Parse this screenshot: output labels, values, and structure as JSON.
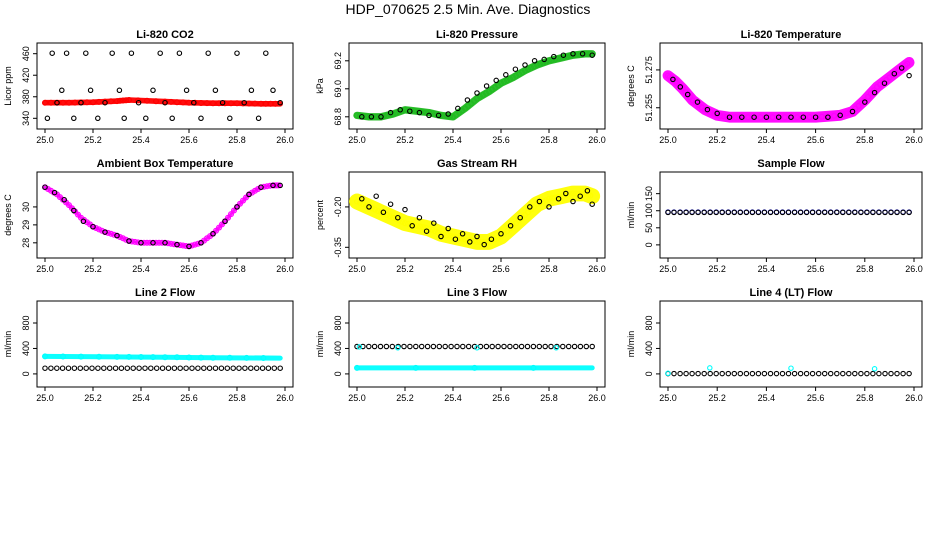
{
  "title": "HDP_070625  2.5 Min. Ave. Diagnostics",
  "chart_data": [
    {
      "type": "scatter",
      "title": "Li-820 CO2",
      "ylabel": "Licor ppm",
      "xlim": [
        25.0,
        26.0
      ],
      "ylim": [
        335,
        465
      ],
      "x_ticks": [
        "25.0",
        "25.2",
        "25.4",
        "25.6",
        "25.8",
        "26.0"
      ],
      "y_ticks": [
        "340",
        "380",
        "420",
        "460"
      ],
      "series": [
        {
          "name": "co2-dense",
          "color": "#ff0000",
          "style": "band",
          "x": [
            25.0,
            25.1,
            25.2,
            25.3,
            25.35,
            25.5,
            25.6,
            25.7,
            25.8,
            25.9,
            25.98
          ],
          "y": [
            369,
            369,
            370,
            372,
            374,
            371,
            369,
            368,
            368,
            367,
            367
          ],
          "spread": 1.5
        },
        {
          "name": "co2-samples",
          "color": "#000000",
          "style": "circles",
          "x": [
            25.01,
            25.03,
            25.05,
            25.07,
            25.09,
            25.12,
            25.15,
            25.17,
            25.19,
            25.22,
            25.25,
            25.28,
            25.31,
            25.33,
            25.36,
            25.39,
            25.42,
            25.45,
            25.48,
            25.5,
            25.53,
            25.56,
            25.59,
            25.62,
            25.65,
            25.68,
            25.71,
            25.74,
            25.77,
            25.8,
            25.83,
            25.86,
            25.89,
            25.92,
            25.95,
            25.98
          ],
          "y": [
            340,
            461,
            369,
            392,
            461,
            340,
            369,
            461,
            392,
            340,
            369,
            461,
            392,
            340,
            461,
            369,
            340,
            392,
            461,
            369,
            340,
            461,
            392,
            369,
            340,
            461,
            392,
            369,
            340,
            461,
            369,
            392,
            340,
            461,
            392,
            369
          ]
        }
      ]
    },
    {
      "type": "scatter",
      "title": "Li-820 Pressure",
      "ylabel": "kPa",
      "xlim": [
        25.0,
        26.0
      ],
      "ylim": [
        68.77,
        69.27
      ],
      "x_ticks": [
        "25.0",
        "25.2",
        "25.4",
        "25.6",
        "25.8",
        "26.0"
      ],
      "y_ticks": [
        "68.8",
        "69.0",
        "69.2"
      ],
      "series": [
        {
          "name": "pressure-dense",
          "color": "#22bb22",
          "style": "band",
          "x": [
            25.0,
            25.05,
            25.1,
            25.15,
            25.2,
            25.25,
            25.3,
            25.35,
            25.4,
            25.45,
            25.5,
            25.55,
            25.6,
            25.65,
            25.7,
            25.75,
            25.8,
            25.85,
            25.9,
            25.95,
            25.98
          ],
          "y": [
            68.81,
            68.8,
            68.8,
            68.82,
            68.85,
            68.84,
            68.83,
            68.81,
            68.8,
            68.86,
            68.93,
            68.98,
            69.04,
            69.08,
            69.13,
            69.17,
            69.2,
            69.22,
            69.24,
            69.25,
            69.25
          ],
          "spread": 0.012
        },
        {
          "name": "pressure-samples",
          "color": "#000000",
          "style": "circles",
          "x": [
            25.02,
            25.06,
            25.1,
            25.14,
            25.18,
            25.22,
            25.26,
            25.3,
            25.34,
            25.38,
            25.42,
            25.46,
            25.5,
            25.54,
            25.58,
            25.62,
            25.66,
            25.7,
            25.74,
            25.78,
            25.82,
            25.86,
            25.9,
            25.94,
            25.98
          ],
          "y": [
            68.8,
            68.8,
            68.8,
            68.83,
            68.85,
            68.84,
            68.83,
            68.81,
            68.81,
            68.82,
            68.86,
            68.92,
            68.97,
            69.02,
            69.06,
            69.1,
            69.14,
            69.17,
            69.2,
            69.21,
            69.23,
            69.24,
            69.25,
            69.25,
            69.24
          ]
        }
      ]
    },
    {
      "type": "scatter",
      "title": "Li-820 Temperature",
      "ylabel": "degrees C",
      "xlim": [
        25.0,
        26.0
      ],
      "ylim": [
        51.248,
        51.285
      ],
      "x_ticks": [
        "25.0",
        "25.2",
        "25.4",
        "25.6",
        "25.8",
        "26.0"
      ],
      "y_ticks": [
        "51.255",
        "51.275"
      ],
      "series": [
        {
          "name": "temp-dense",
          "color": "#ff00ff",
          "style": "band",
          "x": [
            25.0,
            25.03,
            25.06,
            25.1,
            25.15,
            25.2,
            25.25,
            25.3,
            25.4,
            25.5,
            25.6,
            25.7,
            25.75,
            25.8,
            25.85,
            25.9,
            25.95,
            25.98
          ],
          "y": [
            51.272,
            51.269,
            51.265,
            51.259,
            51.254,
            51.251,
            51.25,
            51.25,
            51.25,
            51.25,
            51.25,
            51.251,
            51.253,
            51.259,
            51.266,
            51.271,
            51.276,
            51.279
          ],
          "spread": 0.0018
        },
        {
          "name": "temp-samples",
          "color": "#000000",
          "style": "circles",
          "x": [
            25.02,
            25.05,
            25.08,
            25.12,
            25.16,
            25.2,
            25.25,
            25.3,
            25.35,
            25.4,
            25.45,
            25.5,
            25.55,
            25.6,
            25.65,
            25.7,
            25.75,
            25.8,
            25.84,
            25.88,
            25.92,
            25.95,
            25.98
          ],
          "y": [
            51.27,
            51.266,
            51.262,
            51.258,
            51.254,
            51.252,
            51.25,
            51.25,
            51.25,
            51.25,
            51.25,
            51.25,
            51.25,
            51.25,
            51.25,
            51.251,
            51.253,
            51.258,
            51.263,
            51.268,
            51.273,
            51.276,
            51.272
          ]
        }
      ]
    },
    {
      "type": "scatter",
      "title": "Ambient Box Temperature",
      "ylabel": "degrees C",
      "xlim": [
        25.0,
        26.0
      ],
      "ylim": [
        27.6,
        31.5
      ],
      "x_ticks": [
        "25.0",
        "25.2",
        "25.4",
        "25.6",
        "25.8",
        "26.0"
      ],
      "y_ticks": [
        "28",
        "29",
        "30"
      ],
      "series": [
        {
          "name": "ambient-dense",
          "color": "#ff00ff",
          "style": "line",
          "x": [
            25.0,
            25.05,
            25.1,
            25.15,
            25.2,
            25.25,
            25.3,
            25.35,
            25.4,
            25.45,
            25.5,
            25.55,
            25.6,
            25.65,
            25.7,
            25.75,
            25.8,
            25.85,
            25.9,
            25.95,
            25.98
          ],
          "y": [
            31.1,
            30.7,
            30.1,
            29.4,
            28.9,
            28.6,
            28.4,
            28.1,
            28.0,
            28.0,
            28.0,
            27.9,
            27.8,
            28.0,
            28.5,
            29.2,
            30.0,
            30.7,
            31.1,
            31.2,
            31.2
          ]
        },
        {
          "name": "ambient-samples",
          "color": "#000000",
          "style": "circles",
          "x": [
            25.0,
            25.04,
            25.08,
            25.12,
            25.16,
            25.2,
            25.25,
            25.3,
            25.35,
            25.4,
            25.45,
            25.5,
            25.55,
            25.6,
            25.65,
            25.7,
            25.75,
            25.8,
            25.85,
            25.9,
            25.95,
            25.98
          ],
          "y": [
            31.1,
            30.8,
            30.4,
            29.8,
            29.2,
            28.9,
            28.6,
            28.4,
            28.1,
            28.0,
            28.0,
            28.0,
            27.9,
            27.8,
            28.0,
            28.5,
            29.2,
            30.0,
            30.7,
            31.1,
            31.2,
            31.2
          ]
        }
      ]
    },
    {
      "type": "scatter",
      "title": "Gas Stream RH",
      "ylabel": "percent",
      "xlim": [
        25.0,
        26.0
      ],
      "ylim": [
        -0.36,
        -0.1
      ],
      "x_ticks": [
        "25.0",
        "25.2",
        "25.4",
        "25.6",
        "25.8",
        "26.0"
      ],
      "y_ticks": [
        "-0.35",
        "-0.20"
      ],
      "series": [
        {
          "name": "rh-dense",
          "color": "#ffff00",
          "style": "band",
          "x": [
            25.0,
            25.05,
            25.1,
            25.15,
            25.2,
            25.25,
            25.3,
            25.35,
            25.4,
            25.45,
            25.5,
            25.55,
            25.6,
            25.65,
            25.7,
            25.75,
            25.8,
            25.85,
            25.9,
            25.95,
            25.98
          ],
          "y": [
            -0.18,
            -0.2,
            -0.22,
            -0.24,
            -0.26,
            -0.27,
            -0.28,
            -0.3,
            -0.31,
            -0.32,
            -0.33,
            -0.33,
            -0.31,
            -0.27,
            -0.23,
            -0.19,
            -0.17,
            -0.16,
            -0.15,
            -0.15,
            -0.16
          ],
          "spread": 0.022
        },
        {
          "name": "rh-samples",
          "color": "#000000",
          "style": "circles",
          "x": [
            25.02,
            25.05,
            25.08,
            25.11,
            25.14,
            25.17,
            25.2,
            25.23,
            25.26,
            25.29,
            25.32,
            25.35,
            25.38,
            25.41,
            25.44,
            25.47,
            25.5,
            25.53,
            25.56,
            25.6,
            25.64,
            25.68,
            25.72,
            25.76,
            25.8,
            25.84,
            25.87,
            25.9,
            25.93,
            25.96,
            25.98
          ],
          "y": [
            -0.17,
            -0.2,
            -0.16,
            -0.22,
            -0.19,
            -0.24,
            -0.21,
            -0.27,
            -0.24,
            -0.29,
            -0.26,
            -0.31,
            -0.28,
            -0.32,
            -0.3,
            -0.33,
            -0.31,
            -0.34,
            -0.32,
            -0.3,
            -0.27,
            -0.24,
            -0.2,
            -0.18,
            -0.2,
            -0.17,
            -0.15,
            -0.18,
            -0.16,
            -0.14,
            -0.19
          ]
        }
      ]
    },
    {
      "type": "scatter",
      "title": "Sample Flow",
      "ylabel": "ml/min",
      "xlim": [
        25.0,
        26.0
      ],
      "ylim": [
        -15,
        190
      ],
      "x_ticks": [
        "25.0",
        "25.2",
        "25.4",
        "25.6",
        "25.8",
        "26.0"
      ],
      "y_ticks": [
        "0",
        "50",
        "100",
        "150"
      ],
      "series": [
        {
          "name": "sample-flow",
          "color": "#0000cc",
          "style": "circles-dense",
          "x_start": 25.0,
          "x_end": 25.98,
          "y": 96
        },
        {
          "name": "sample-flow-samples",
          "color": "#000000",
          "style": "circles-dense",
          "x_start": 25.0,
          "x_end": 25.98,
          "y": 95
        }
      ]
    },
    {
      "type": "scatter",
      "title": "Line 2 Flow",
      "ylabel": "ml/min",
      "xlim": [
        25.0,
        26.0
      ],
      "ylim": [
        -80,
        1020
      ],
      "x_ticks": [
        "25.0",
        "25.2",
        "25.4",
        "25.6",
        "25.8",
        "26.0"
      ],
      "y_ticks": [
        "0",
        "400",
        "800"
      ],
      "series": [
        {
          "name": "line2-cyan",
          "color": "#00ffff",
          "style": "band",
          "x": [
            25.0,
            25.3,
            25.5,
            25.7,
            25.98
          ],
          "y": [
            275,
            268,
            262,
            255,
            248
          ],
          "spread": 8
        },
        {
          "name": "line2-black",
          "color": "#000000",
          "style": "circles-dense",
          "x_start": 25.0,
          "x_end": 25.98,
          "y": 90
        }
      ]
    },
    {
      "type": "scatter",
      "title": "Line 3 Flow",
      "ylabel": "ml/min",
      "xlim": [
        25.0,
        26.0
      ],
      "ylim": [
        -80,
        1020
      ],
      "x_ticks": [
        "25.0",
        "25.2",
        "25.4",
        "25.6",
        "25.8",
        "26.0"
      ],
      "y_ticks": [
        "0",
        "400",
        "800"
      ],
      "series": [
        {
          "name": "line3-cyan-low",
          "color": "#00ffff",
          "style": "band",
          "x": [
            25.0,
            25.98
          ],
          "y": [
            95,
            95
          ],
          "spread": 7
        },
        {
          "name": "line3-black",
          "color": "#000000",
          "style": "circles-dense",
          "x_start": 25.0,
          "x_end": 25.98,
          "y": 430
        },
        {
          "name": "line3-cyan-high",
          "color": "#00ffff",
          "style": "circles",
          "x": [
            25.01,
            25.17,
            25.5,
            25.83
          ],
          "y": [
            425,
            410,
            410,
            410
          ]
        }
      ]
    },
    {
      "type": "scatter",
      "title": "Line 4 (LT) Flow",
      "ylabel": "ml/min",
      "xlim": [
        25.0,
        26.0
      ],
      "ylim": [
        -80,
        1020
      ],
      "x_ticks": [
        "25.0",
        "25.2",
        "25.4",
        "25.6",
        "25.8",
        "26.0"
      ],
      "y_ticks": [
        "0",
        "400",
        "800"
      ],
      "series": [
        {
          "name": "line4-black",
          "color": "#000000",
          "style": "circles-dense",
          "x_start": 25.0,
          "x_end": 25.98,
          "y": 5
        },
        {
          "name": "line4-cyan",
          "color": "#00ffff",
          "style": "circles",
          "x": [
            25.0,
            25.17,
            25.5,
            25.84
          ],
          "y": [
            10,
            95,
            90,
            80
          ]
        }
      ]
    }
  ]
}
